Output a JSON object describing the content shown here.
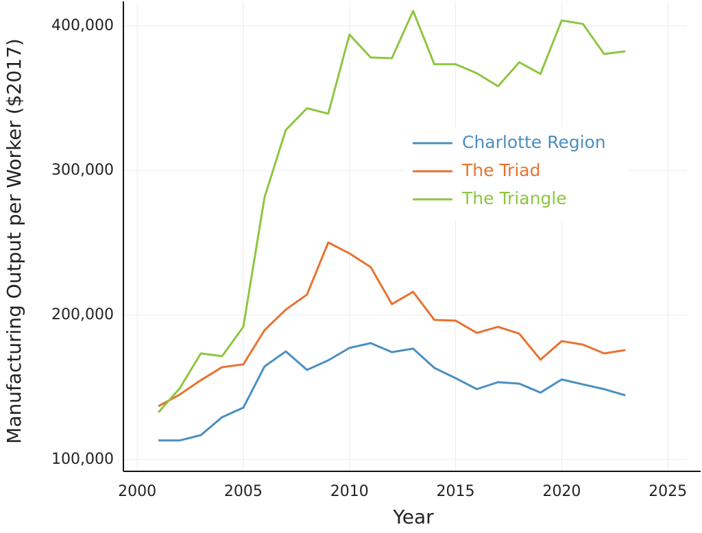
{
  "chart_data": {
    "type": "line",
    "x_label": "Year",
    "y_label": "Manufacturing Output per Worker ($2017)",
    "x": [
      2001,
      2002,
      2003,
      2004,
      2005,
      2006,
      2007,
      2008,
      2009,
      2010,
      2011,
      2012,
      2013,
      2014,
      2015,
      2016,
      2017,
      2018,
      2019,
      2020,
      2021,
      2022,
      2023
    ],
    "series": [
      {
        "name": "Charlotte Region",
        "color": "#4a8fc1",
        "values": [
          113300,
          113300,
          117000,
          129400,
          136000,
          164500,
          174900,
          162100,
          168700,
          177300,
          180600,
          174400,
          176800,
          163500,
          156400,
          148800,
          153600,
          152600,
          146400,
          155500,
          152100,
          148800,
          144500
        ]
      },
      {
        "name": "The Triad",
        "color": "#e8722f",
        "values": [
          137000,
          145000,
          155000,
          164000,
          165900,
          189600,
          203800,
          214200,
          250200,
          242700,
          233200,
          207600,
          216100,
          196700,
          196200,
          187700,
          191900,
          187200,
          169200,
          182000,
          179600,
          173500,
          175800
        ]
      },
      {
        "name": "The Triangle",
        "color": "#8dc63f",
        "values": [
          132700,
          149300,
          173500,
          171600,
          191900,
          281500,
          328000,
          343100,
          339300,
          394000,
          378200,
          377700,
          410400,
          373500,
          373500,
          367300,
          358300,
          374900,
          366800,
          403800,
          401400,
          380600,
          382500
        ]
      }
    ],
    "xlim": [
      1999.35,
      2025.9
    ],
    "ylim": [
      91940,
      417000
    ],
    "xticks": [
      2000,
      2005,
      2010,
      2015,
      2020,
      2025
    ],
    "yticks": [
      {
        "value": 100000,
        "label": "100,000"
      },
      {
        "value": 200000,
        "label": "200,000"
      },
      {
        "value": 300000,
        "label": "300,000"
      },
      {
        "value": 400000,
        "label": "400,000"
      }
    ],
    "grid": true,
    "legend_loc": "center right"
  }
}
